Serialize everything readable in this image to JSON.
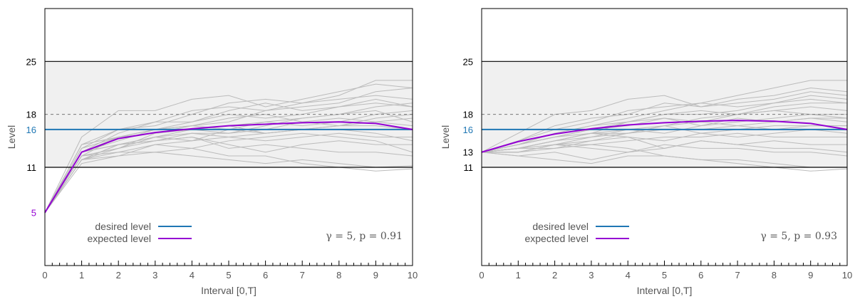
{
  "chart_data": [
    {
      "type": "line",
      "xlabel": "Interval [0,T]",
      "ylabel": "Level",
      "xlim": [
        0,
        10
      ],
      "ylim": [
        -2,
        32
      ],
      "xticks": [
        "0",
        "1",
        "2",
        "3",
        "4",
        "5",
        "6",
        "7",
        "8",
        "9",
        "10"
      ],
      "yticks": [
        {
          "value": 5,
          "label": "5",
          "color": "#9400D3"
        },
        {
          "value": 11,
          "label": "11",
          "color": "#000000"
        },
        {
          "value": 16,
          "label": "16",
          "color": "#1f77b4"
        },
        {
          "value": 18,
          "label": "18",
          "color": "#000000"
        },
        {
          "value": 25,
          "label": "25",
          "color": "#000000"
        }
      ],
      "band": {
        "low": 11,
        "high": 25,
        "color": "#f0f0f0"
      },
      "reference_lines": [
        {
          "value": 11,
          "style": "solid",
          "color": "#000000"
        },
        {
          "value": 25,
          "style": "solid",
          "color": "#000000"
        },
        {
          "value": 18,
          "style": "dashed",
          "color": "#777777"
        }
      ],
      "series": [
        {
          "name": "desired level",
          "color": "#1f77b4",
          "x": [
            0,
            1,
            2,
            3,
            4,
            5,
            6,
            7,
            8,
            9,
            10
          ],
          "values": [
            16,
            16,
            16,
            16,
            16,
            16,
            16,
            16,
            16,
            16,
            16
          ]
        },
        {
          "name": "expected level",
          "color": "#9400D3",
          "x": [
            0,
            1,
            2,
            3,
            4,
            5,
            6,
            7,
            8,
            9,
            10
          ],
          "values": [
            5,
            13,
            14.8,
            15.6,
            16.1,
            16.5,
            16.7,
            16.9,
            17,
            16.8,
            16
          ]
        }
      ],
      "sample_paths_color": "#bbbbbb",
      "sample_paths": [
        [
          5,
          13.5,
          16,
          16.5,
          18,
          19.5,
          20,
          19.5,
          20.5,
          22.5,
          22.5
        ],
        [
          5,
          14,
          16,
          17,
          18.5,
          19,
          18.5,
          19,
          19.5,
          21,
          21.5
        ],
        [
          5,
          15,
          18.5,
          18.5,
          20,
          20.5,
          19,
          20,
          21,
          22,
          21.5
        ],
        [
          5,
          12.5,
          15,
          16,
          16.5,
          17,
          18.5,
          19.5,
          20,
          20.5,
          20
        ],
        [
          5,
          13,
          15.5,
          17,
          17,
          18,
          17.5,
          18,
          19,
          19.5,
          19
        ],
        [
          5,
          12,
          14,
          15,
          16,
          16.5,
          17,
          16.5,
          17,
          18,
          18.5
        ],
        [
          5,
          13.5,
          15,
          15.5,
          16,
          15.5,
          16,
          17,
          17.5,
          17,
          17.5
        ],
        [
          5,
          12.5,
          13.5,
          15,
          15.5,
          15.5,
          16.5,
          17.5,
          18,
          18.5,
          17
        ],
        [
          5,
          13,
          14.5,
          16,
          16.5,
          16,
          15.5,
          16,
          16.5,
          16.5,
          16
        ],
        [
          5,
          12,
          14,
          14.5,
          15.5,
          15,
          14.5,
          15,
          15.5,
          15,
          15
        ],
        [
          5,
          12.5,
          13,
          14,
          14.5,
          15,
          15.5,
          16,
          16,
          15.5,
          14.5
        ],
        [
          5,
          12,
          13.5,
          14.5,
          15,
          14,
          13,
          14,
          14.5,
          14,
          14
        ],
        [
          5,
          13,
          14,
          14.5,
          15,
          13.5,
          14,
          13.5,
          13,
          13,
          12.5
        ],
        [
          5,
          12,
          12.5,
          13,
          13.5,
          14.5,
          15,
          15.5,
          15,
          14.5,
          13
        ],
        [
          5,
          11.5,
          12.5,
          14,
          13.5,
          12.5,
          12.5,
          11.5,
          11,
          10.5,
          10.8
        ],
        [
          5,
          12,
          13,
          13,
          12.5,
          12,
          11.5,
          12,
          11.5,
          11,
          11.2
        ],
        [
          5,
          13,
          14,
          15,
          14.5,
          16,
          17,
          17.5,
          18,
          19,
          19.5
        ],
        [
          5,
          14,
          15,
          16,
          17,
          18.5,
          19.5,
          18.5,
          19,
          20,
          19
        ],
        [
          5,
          12.5,
          13.5,
          15.5,
          16,
          16.5,
          15.5,
          16,
          16.5,
          17,
          16.5
        ],
        [
          5,
          13,
          15,
          15.5,
          16.5,
          17.5,
          18,
          17,
          16.5,
          17.5,
          18
        ]
      ],
      "annotation": "γ = 5,  p = 0.91"
    },
    {
      "type": "line",
      "xlabel": "Interval [0,T]",
      "ylabel": "Level",
      "xlim": [
        0,
        10
      ],
      "ylim": [
        -2,
        32
      ],
      "xticks": [
        "0",
        "1",
        "2",
        "3",
        "4",
        "5",
        "6",
        "7",
        "8",
        "9",
        "10"
      ],
      "yticks": [
        {
          "value": 11,
          "label": "11",
          "color": "#000000"
        },
        {
          "value": 13,
          "label": "13",
          "color": "#000000"
        },
        {
          "value": 16,
          "label": "16",
          "color": "#1f77b4"
        },
        {
          "value": 18,
          "label": "18",
          "color": "#000000"
        },
        {
          "value": 25,
          "label": "25",
          "color": "#000000"
        }
      ],
      "band": {
        "low": 11,
        "high": 25,
        "color": "#f0f0f0"
      },
      "reference_lines": [
        {
          "value": 11,
          "style": "solid",
          "color": "#000000"
        },
        {
          "value": 25,
          "style": "solid",
          "color": "#000000"
        },
        {
          "value": 18,
          "style": "dashed",
          "color": "#777777"
        }
      ],
      "series": [
        {
          "name": "desired level",
          "color": "#1f77b4",
          "x": [
            0,
            1,
            2,
            3,
            4,
            5,
            6,
            7,
            8,
            9,
            10
          ],
          "values": [
            16,
            16,
            16,
            16,
            16,
            16,
            16,
            16,
            16,
            16,
            16
          ]
        },
        {
          "name": "expected level",
          "color": "#9400D3",
          "x": [
            0,
            1,
            2,
            3,
            4,
            5,
            6,
            7,
            8,
            9,
            10
          ],
          "values": [
            13,
            14.4,
            15.4,
            16.1,
            16.6,
            16.9,
            17.1,
            17.2,
            17.1,
            16.8,
            16
          ]
        }
      ],
      "sample_paths_color": "#bbbbbb",
      "sample_paths": [
        [
          13,
          14.5,
          16,
          17,
          18.5,
          19,
          19.5,
          20.5,
          21.5,
          22.5,
          22.5
        ],
        [
          13,
          15.5,
          18,
          18.5,
          20,
          20.5,
          19,
          20,
          20.5,
          21.5,
          21
        ],
        [
          13,
          14,
          15.5,
          16.5,
          17.5,
          18.5,
          19.5,
          19,
          19.5,
          20.5,
          20
        ],
        [
          13,
          13.5,
          14.5,
          15.5,
          17,
          18,
          18,
          18.5,
          19.5,
          20,
          19.5
        ],
        [
          13,
          14,
          15,
          16,
          16.5,
          17.5,
          17,
          18,
          18.5,
          19,
          18.5
        ],
        [
          13,
          13.5,
          14.5,
          15,
          15.5,
          16.5,
          17.5,
          18,
          18.5,
          18,
          18
        ],
        [
          13,
          13.5,
          14,
          15,
          16,
          15.5,
          16.5,
          17.5,
          17,
          17.5,
          17.5
        ],
        [
          13,
          13,
          14,
          14.5,
          15.5,
          16,
          16,
          16.5,
          17,
          17.5,
          17
        ],
        [
          13,
          14,
          15,
          15.5,
          15.5,
          16.5,
          15.5,
          16,
          16.5,
          16.5,
          16.5
        ],
        [
          13,
          13.5,
          14.5,
          15.5,
          15,
          14.5,
          15.5,
          15,
          15.5,
          16,
          15.5
        ],
        [
          13,
          13,
          14,
          14,
          14.5,
          15,
          15,
          15.5,
          15,
          15,
          15
        ],
        [
          13,
          13.5,
          13.5,
          14.5,
          15,
          13.5,
          14.5,
          14,
          14.5,
          14,
          14
        ],
        [
          13,
          13,
          14,
          13.5,
          13,
          14,
          13.5,
          13.5,
          13,
          13,
          12.5
        ],
        [
          13,
          12.5,
          13,
          12,
          13,
          13.5,
          14.5,
          14,
          13.5,
          13.5,
          13
        ],
        [
          13,
          12.5,
          12,
          11.5,
          12.5,
          12.5,
          12,
          11.5,
          11,
          10.5,
          10.8
        ],
        [
          13,
          13,
          13.5,
          14,
          13.5,
          12.5,
          12,
          12,
          11.5,
          11,
          11
        ],
        [
          13,
          14,
          15.5,
          16.5,
          17,
          18,
          18.5,
          18,
          19,
          19.5,
          19.5
        ],
        [
          13,
          14.5,
          16.5,
          17.5,
          18,
          19.5,
          19,
          19.5,
          20,
          21,
          20.5
        ],
        [
          13,
          13.5,
          14.5,
          15.5,
          16,
          16.5,
          17,
          16.5,
          16,
          16.5,
          16.5
        ],
        [
          13,
          14,
          15,
          16,
          17,
          17.5,
          16.5,
          17,
          17.5,
          18,
          17.5
        ]
      ],
      "annotation": "γ = 5,  p = 0.93"
    }
  ]
}
